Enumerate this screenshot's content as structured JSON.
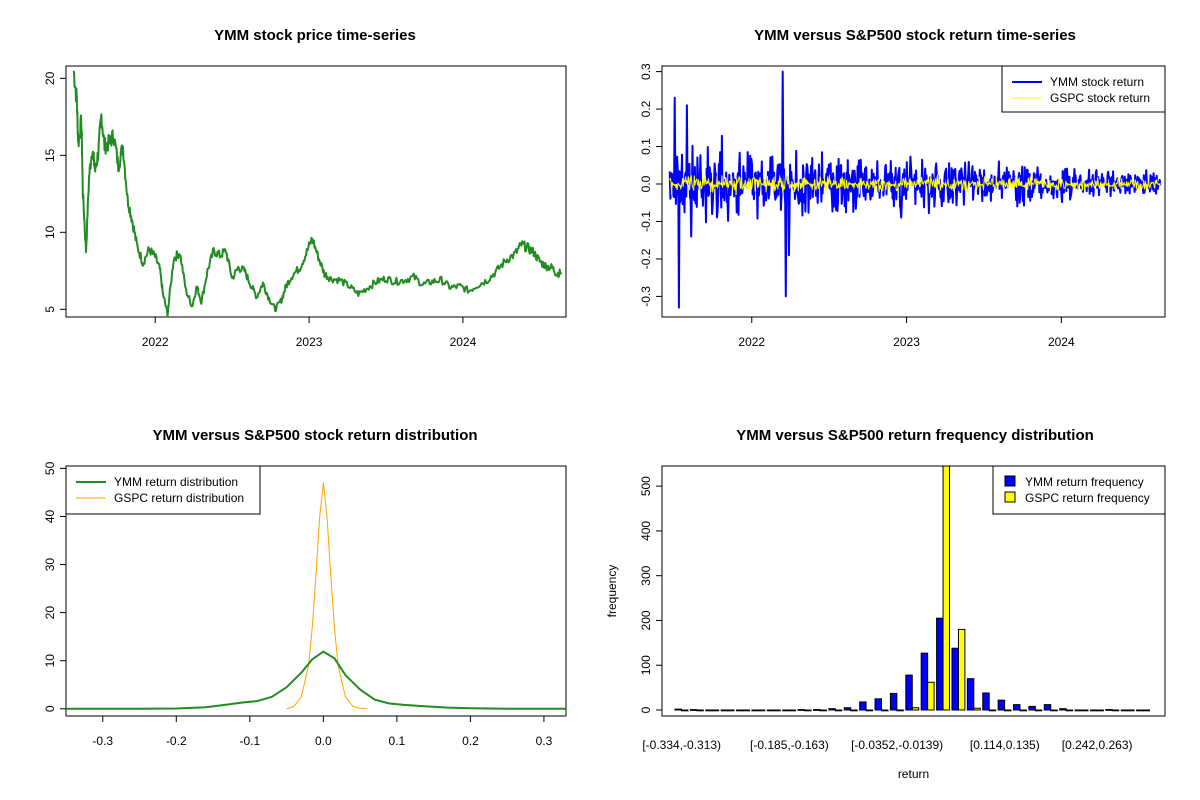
{
  "colors": {
    "ymm_price": "#228B22",
    "ymm_return": "#0000FF",
    "gspc_return": "#FFFF00",
    "ymm_density": "#228B22",
    "gspc_density": "#FFA500",
    "ymm_bar": "#0000FF",
    "gspc_bar": "#FFFF00"
  },
  "chart_data": [
    {
      "type": "line",
      "title": "YMM stock price time-series",
      "xlabel": "",
      "ylabel": "",
      "xlim": [
        2021.42,
        2024.67
      ],
      "ylim": [
        4.5,
        20.8
      ],
      "x_ticks": [
        2022,
        2023,
        2024
      ],
      "x_tick_labels": [
        "2022",
        "2023",
        "2024"
      ],
      "y_ticks": [
        5,
        10,
        15,
        20
      ],
      "y_tick_labels": [
        "5",
        "10",
        "15",
        "20"
      ],
      "series": [
        {
          "name": "YMM price",
          "x": [
            2021.47,
            2021.49,
            2021.5,
            2021.52,
            2021.53,
            2021.55,
            2021.57,
            2021.59,
            2021.61,
            2021.63,
            2021.65,
            2021.67,
            2021.7,
            2021.73,
            2021.76,
            2021.79,
            2021.82,
            2021.85,
            2021.88,
            2021.92,
            2021.96,
            2022.0,
            2022.03,
            2022.05,
            2022.08,
            2022.12,
            2022.16,
            2022.2,
            2022.24,
            2022.27,
            2022.3,
            2022.34,
            2022.38,
            2022.42,
            2022.46,
            2022.5,
            2022.54,
            2022.58,
            2022.62,
            2022.66,
            2022.7,
            2022.74,
            2022.78,
            2022.82,
            2022.85,
            2022.89,
            2022.94,
            2022.98,
            2023.02,
            2023.06,
            2023.1,
            2023.14,
            2023.2,
            2023.26,
            2023.32,
            2023.38,
            2023.44,
            2023.5,
            2023.56,
            2023.62,
            2023.68,
            2023.74,
            2023.8,
            2023.86,
            2023.92,
            2023.98,
            2024.04,
            2024.1,
            2024.16,
            2024.22,
            2024.28,
            2024.34,
            2024.38,
            2024.42,
            2024.46,
            2024.5,
            2024.54,
            2024.58,
            2024.61,
            2024.64
          ],
          "values": [
            20.5,
            18.6,
            15.8,
            17.2,
            12.5,
            8.8,
            13.6,
            15.4,
            14.0,
            15.2,
            17.6,
            15.6,
            15.8,
            16.3,
            14.3,
            15.6,
            12.2,
            10.8,
            9.2,
            8.0,
            8.9,
            8.4,
            7.6,
            6.0,
            4.7,
            8.3,
            8.7,
            6.2,
            5.2,
            6.5,
            5.5,
            7.5,
            8.8,
            8.5,
            8.8,
            7.0,
            7.7,
            7.5,
            6.6,
            5.8,
            6.7,
            5.7,
            5.0,
            5.6,
            6.5,
            7.2,
            7.7,
            8.6,
            9.6,
            8.4,
            7.3,
            7.0,
            6.9,
            6.5,
            6.0,
            6.4,
            6.8,
            7.0,
            6.8,
            6.9,
            7.1,
            6.6,
            6.8,
            6.9,
            6.4,
            6.5,
            6.2,
            6.6,
            6.9,
            7.5,
            8.2,
            8.6,
            9.2,
            9.0,
            8.7,
            8.1,
            7.8,
            7.7,
            7.3,
            7.4
          ]
        }
      ]
    },
    {
      "type": "line",
      "title": "YMM versus S&P500 stock return time-series",
      "xlabel": "",
      "ylabel": "",
      "xlim": [
        2021.42,
        2024.67
      ],
      "ylim": [
        -0.355,
        0.315
      ],
      "x_ticks": [
        2022,
        2023,
        2024
      ],
      "x_tick_labels": [
        "2022",
        "2023",
        "2024"
      ],
      "y_ticks": [
        -0.3,
        -0.2,
        -0.1,
        0.0,
        0.1,
        0.2,
        0.3
      ],
      "y_tick_labels": [
        "-0.3",
        "-0.2",
        "-0.1",
        "0.0",
        "0.1",
        "0.2",
        "0.3"
      ],
      "legend": {
        "position": "top-right",
        "entries": [
          "YMM stock return",
          "GSPC stock return"
        ]
      },
      "series": [
        {
          "name": "YMM stock return",
          "synthetic_noise": {
            "start": 2021.47,
            "end": 2024.64,
            "count": 800,
            "amplitude_start": 0.09,
            "amplitude_end": 0.025
          },
          "spikes_x": [
            2021.5,
            2021.53,
            2021.58,
            2022.2,
            2022.22,
            2022.24,
            2021.61
          ],
          "spikes_y": [
            0.23,
            -0.33,
            0.21,
            0.3,
            -0.3,
            -0.19,
            -0.14
          ]
        },
        {
          "name": "GSPC stock return",
          "synthetic_noise": {
            "start": 2021.47,
            "end": 2024.64,
            "count": 800,
            "amplitude_start": 0.022,
            "amplitude_end": 0.013
          }
        }
      ]
    },
    {
      "type": "line",
      "title": "YMM versus S&P500 stock return distribution",
      "xlabel": "",
      "ylabel": "",
      "xlim": [
        -0.35,
        0.33
      ],
      "ylim": [
        -1.5,
        50.5
      ],
      "x_ticks": [
        -0.3,
        -0.2,
        -0.1,
        0.0,
        0.1,
        0.2,
        0.3
      ],
      "x_tick_labels": [
        "-0.3",
        "-0.2",
        "-0.1",
        "0.0",
        "0.1",
        "0.2",
        "0.3"
      ],
      "y_ticks": [
        0,
        10,
        20,
        30,
        40,
        50
      ],
      "y_tick_labels": [
        "0",
        "10",
        "20",
        "30",
        "40",
        "50"
      ],
      "legend": {
        "position": "top-left",
        "entries": [
          "YMM return distribution",
          "GSPC return distribution"
        ]
      },
      "series": [
        {
          "name": "YMM return distribution",
          "x": [
            -0.35,
            -0.25,
            -0.2,
            -0.16,
            -0.13,
            -0.11,
            -0.09,
            -0.07,
            -0.05,
            -0.03,
            -0.015,
            0.0,
            0.015,
            0.03,
            0.05,
            0.07,
            0.09,
            0.11,
            0.14,
            0.17,
            0.2,
            0.25,
            0.33
          ],
          "values": [
            0.0,
            0.0,
            0.05,
            0.3,
            0.9,
            1.3,
            1.6,
            2.5,
            4.5,
            7.5,
            10.3,
            11.9,
            10.5,
            7.0,
            4.0,
            1.9,
            1.1,
            0.8,
            0.5,
            0.25,
            0.1,
            0.0,
            0.0
          ]
        },
        {
          "name": "GSPC return distribution",
          "x": [
            -0.05,
            -0.04,
            -0.03,
            -0.02,
            -0.015,
            -0.01,
            -0.005,
            0.0,
            0.005,
            0.01,
            0.015,
            0.02,
            0.03,
            0.04,
            0.05,
            0.06
          ],
          "values": [
            0.0,
            0.5,
            2.5,
            9.0,
            17.0,
            28.0,
            40.0,
            47.0,
            40.0,
            28.0,
            17.0,
            9.0,
            2.5,
            0.5,
            0.1,
            0.0
          ]
        }
      ]
    },
    {
      "type": "bar",
      "title": "YMM versus S&P500 return frequency distribution",
      "xlabel": "return",
      "ylabel": "frequency",
      "ylim": [
        0,
        545
      ],
      "y_ticks": [
        0,
        100,
        200,
        300,
        400,
        500
      ],
      "y_tick_labels": [
        "0",
        "100",
        "200",
        "300",
        "400",
        "500"
      ],
      "x_tick_labels": [
        "[-0.334,-0.313)",
        "[-0.185,-0.163)",
        "[-0.0352,-0.0139)",
        "[0.114,0.135)",
        "[0.242,0.263)"
      ],
      "x_tick_groups": [
        0,
        7,
        14,
        21,
        27
      ],
      "legend": {
        "position": "top-right",
        "entries": [
          "YMM return frequency",
          "GSPC return frequency"
        ]
      },
      "categories_count": 31,
      "series": [
        {
          "name": "YMM return frequency",
          "values": [
            2,
            1,
            0,
            0,
            0,
            0,
            0,
            0,
            1,
            1,
            3,
            5,
            18,
            25,
            37,
            78,
            127,
            205,
            138,
            70,
            38,
            22,
            12,
            8,
            12,
            3,
            0,
            0,
            1,
            0,
            0
          ]
        },
        {
          "name": "GSPC return frequency",
          "values": [
            0,
            0,
            0,
            0,
            0,
            0,
            0,
            0,
            0,
            0,
            0,
            0,
            0,
            0,
            0,
            5,
            62,
            545,
            180,
            4,
            0,
            0,
            0,
            0,
            0,
            0,
            0,
            0,
            0,
            0,
            0
          ]
        }
      ]
    }
  ]
}
